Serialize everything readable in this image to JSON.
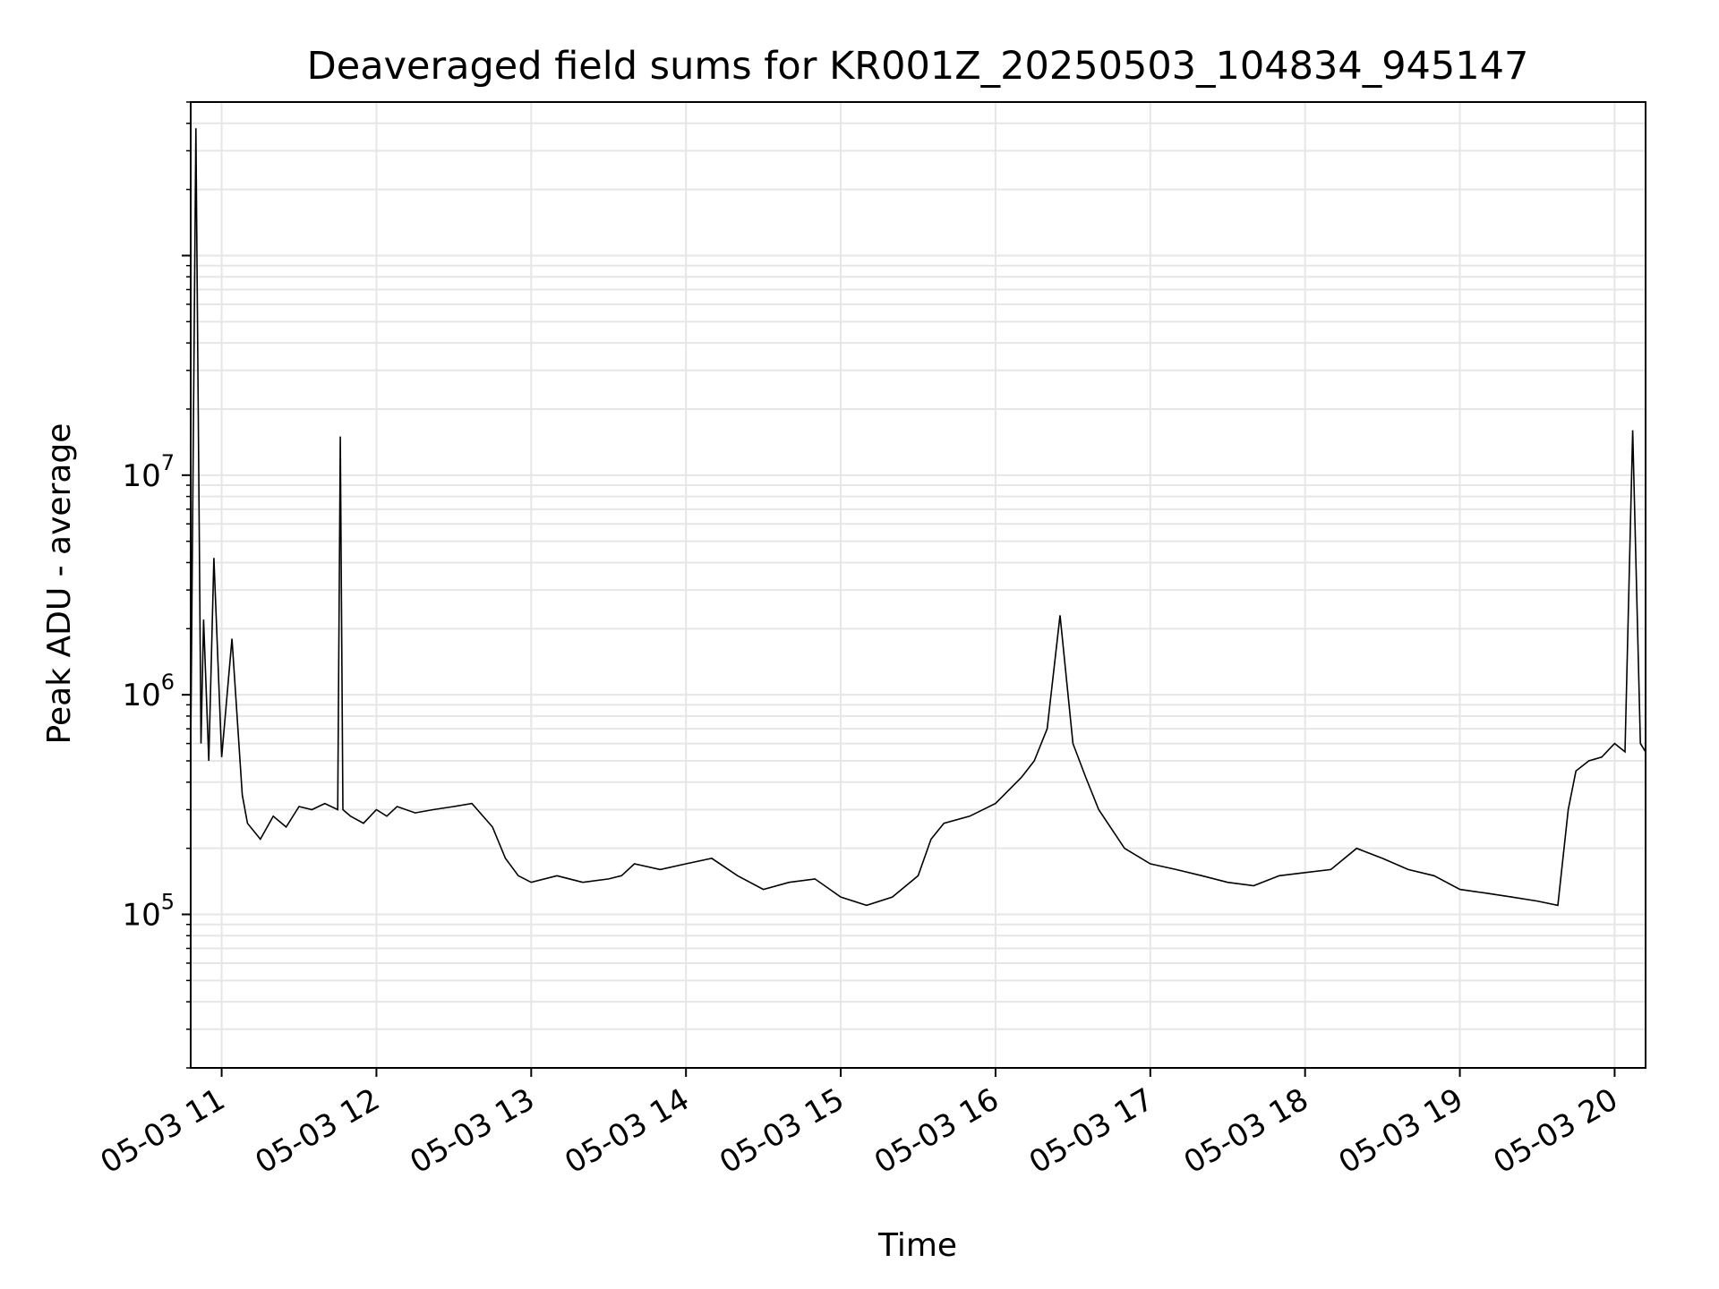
{
  "chart_data": {
    "type": "line",
    "title": "Deaveraged field sums for KR001Z_20250503_104834_945147",
    "xlabel": "Time",
    "ylabel": "Peak ADU - average",
    "yscale": "log",
    "xlim": [
      "2025-05-03 10:48",
      "2025-05-03 20:12"
    ],
    "ylim": [
      20000,
      500000000
    ],
    "x_ticks": [
      {
        "value": "2025-05-03 11:00",
        "label": "05-03 11"
      },
      {
        "value": "2025-05-03 12:00",
        "label": "05-03 12"
      },
      {
        "value": "2025-05-03 13:00",
        "label": "05-03 13"
      },
      {
        "value": "2025-05-03 14:00",
        "label": "05-03 14"
      },
      {
        "value": "2025-05-03 15:00",
        "label": "05-03 15"
      },
      {
        "value": "2025-05-03 16:00",
        "label": "05-03 16"
      },
      {
        "value": "2025-05-03 17:00",
        "label": "05-03 17"
      },
      {
        "value": "2025-05-03 18:00",
        "label": "05-03 18"
      },
      {
        "value": "2025-05-03 19:00",
        "label": "05-03 19"
      },
      {
        "value": "2025-05-03 20:00",
        "label": "05-03 20"
      }
    ],
    "y_ticks": [
      {
        "value": 100000,
        "base": "10",
        "exp": "5"
      },
      {
        "value": 1000000,
        "base": "10",
        "exp": "6"
      },
      {
        "value": 10000000,
        "base": "10",
        "exp": "7"
      }
    ],
    "grid": true,
    "line_color": "#000000",
    "grid_color": "#e6e6e6",
    "series": [
      {
        "x": [
          "2025-05-03 10:48",
          "2025-05-03 10:50",
          "2025-05-03 10:52",
          "2025-05-03 10:53",
          "2025-05-03 10:55",
          "2025-05-03 10:57",
          "2025-05-03 11:00",
          "2025-05-03 11:04",
          "2025-05-03 11:08",
          "2025-05-03 11:10",
          "2025-05-03 11:15",
          "2025-05-03 11:20",
          "2025-05-03 11:25",
          "2025-05-03 11:30",
          "2025-05-03 11:35",
          "2025-05-03 11:40",
          "2025-05-03 11:45",
          "2025-05-03 11:46",
          "2025-05-03 11:47",
          "2025-05-03 11:50",
          "2025-05-03 11:55",
          "2025-05-03 12:00",
          "2025-05-03 12:04",
          "2025-05-03 12:08",
          "2025-05-03 12:15",
          "2025-05-03 12:22",
          "2025-05-03 12:30",
          "2025-05-03 12:37",
          "2025-05-03 12:45",
          "2025-05-03 12:50",
          "2025-05-03 12:55",
          "2025-05-03 13:00",
          "2025-05-03 13:10",
          "2025-05-03 13:20",
          "2025-05-03 13:30",
          "2025-05-03 13:35",
          "2025-05-03 13:40",
          "2025-05-03 13:50",
          "2025-05-03 14:00",
          "2025-05-03 14:10",
          "2025-05-03 14:20",
          "2025-05-03 14:30",
          "2025-05-03 14:40",
          "2025-05-03 14:50",
          "2025-05-03 15:00",
          "2025-05-03 15:10",
          "2025-05-03 15:20",
          "2025-05-03 15:30",
          "2025-05-03 15:35",
          "2025-05-03 15:40",
          "2025-05-03 15:50",
          "2025-05-03 16:00",
          "2025-05-03 16:10",
          "2025-05-03 16:15",
          "2025-05-03 16:20",
          "2025-05-03 16:25",
          "2025-05-03 16:30",
          "2025-05-03 16:35",
          "2025-05-03 16:40",
          "2025-05-03 16:50",
          "2025-05-03 17:00",
          "2025-05-03 17:10",
          "2025-05-03 17:20",
          "2025-05-03 17:30",
          "2025-05-03 17:40",
          "2025-05-03 17:50",
          "2025-05-03 18:00",
          "2025-05-03 18:10",
          "2025-05-03 18:20",
          "2025-05-03 18:30",
          "2025-05-03 18:40",
          "2025-05-03 18:50",
          "2025-05-03 19:00",
          "2025-05-03 19:10",
          "2025-05-03 19:20",
          "2025-05-03 19:30",
          "2025-05-03 19:38",
          "2025-05-03 19:42",
          "2025-05-03 19:45",
          "2025-05-03 19:50",
          "2025-05-03 19:55",
          "2025-05-03 20:00",
          "2025-05-03 20:04",
          "2025-05-03 20:07",
          "2025-05-03 20:10",
          "2025-05-03 20:12"
        ],
        "y": [
          550000,
          380000000,
          600000,
          2200000,
          500000,
          4200000,
          520000,
          1800000,
          350000,
          260000,
          220000,
          280000,
          250000,
          310000,
          300000,
          320000,
          300000,
          15000000,
          300000,
          280000,
          260000,
          300000,
          280000,
          310000,
          290000,
          300000,
          310000,
          320000,
          250000,
          180000,
          150000,
          140000,
          150000,
          140000,
          145000,
          150000,
          170000,
          160000,
          170000,
          180000,
          150000,
          130000,
          140000,
          145000,
          120000,
          110000,
          120000,
          150000,
          220000,
          260000,
          280000,
          320000,
          420000,
          500000,
          700000,
          2300000,
          600000,
          420000,
          300000,
          200000,
          170000,
          160000,
          150000,
          140000,
          135000,
          150000,
          155000,
          160000,
          200000,
          180000,
          160000,
          150000,
          130000,
          125000,
          120000,
          115000,
          110000,
          300000,
          450000,
          500000,
          520000,
          600000,
          550000,
          16000000,
          600000,
          550000
        ]
      }
    ]
  }
}
